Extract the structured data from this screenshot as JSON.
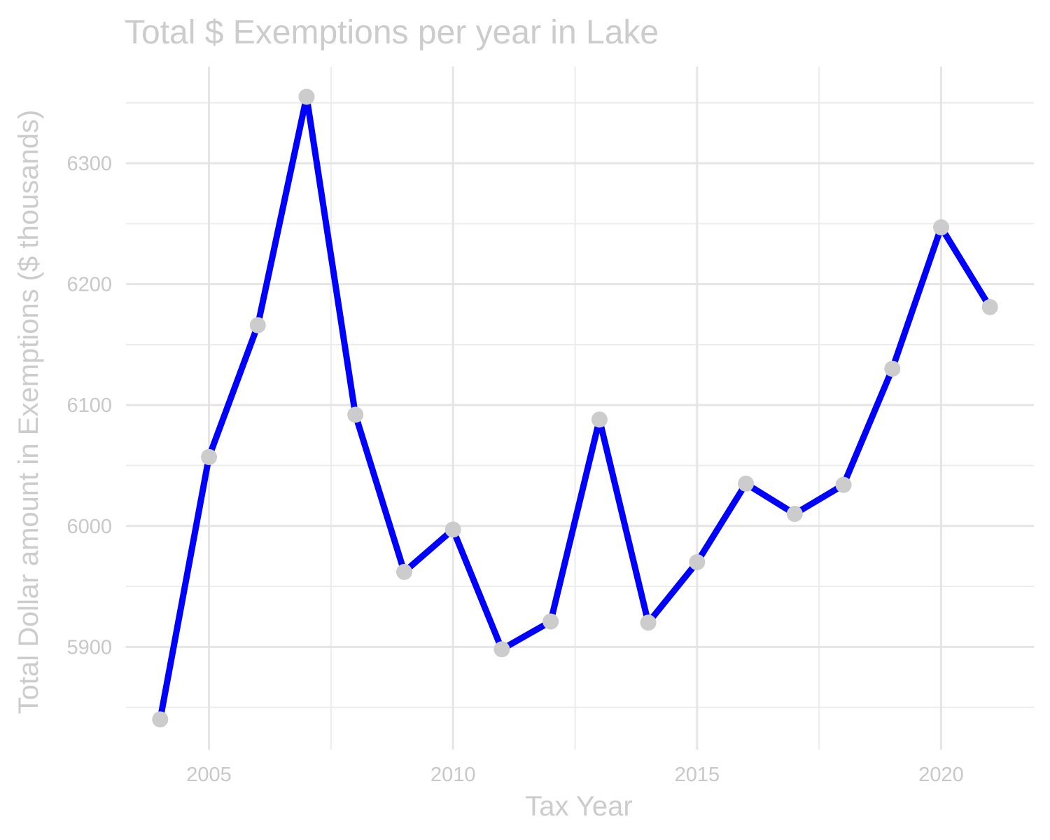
{
  "chart_data": {
    "type": "line",
    "title": "Total $ Exemptions per year in Lake",
    "xlabel": "Tax Year",
    "ylabel": "Total Dollar amount in Exemptions ($ thousands)",
    "x": [
      2004,
      2005,
      2006,
      2007,
      2008,
      2009,
      2010,
      2011,
      2012,
      2013,
      2014,
      2015,
      2016,
      2017,
      2018,
      2019,
      2020,
      2021
    ],
    "series": [
      {
        "values": [
          5840,
          6057,
          6166,
          6355,
          6092,
          5962,
          5997,
          5898,
          5921,
          6088,
          5920,
          5970,
          6035,
          6010,
          6034,
          6130,
          6247,
          6181
        ]
      }
    ],
    "xlim": [
      2003.3,
      2021.9
    ],
    "ylim": [
      5815,
      6380
    ],
    "x_ticks": [
      2005,
      2010,
      2015,
      2020
    ],
    "x_tick_labels": [
      "2005",
      "2010",
      "2015",
      "2020"
    ],
    "y_ticks": [
      5900,
      6000,
      6100,
      6200,
      6300
    ],
    "y_tick_labels": [
      "5900",
      "6000",
      "6100",
      "6200",
      "6300"
    ],
    "grid": true,
    "legend": "none",
    "colors": {
      "line": "#0000ff",
      "points": "#cccccc",
      "grid": "#e5e5e5",
      "text": "#cccccc"
    }
  }
}
